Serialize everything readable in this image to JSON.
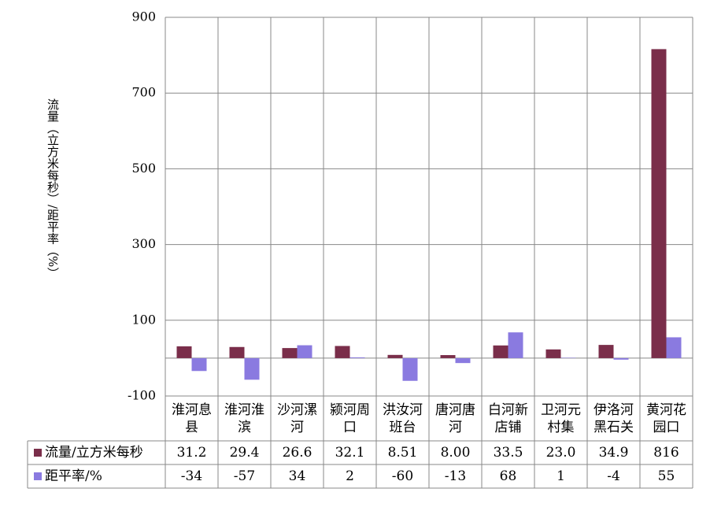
{
  "chart_data": {
    "type": "bar",
    "y_label": "流量（立方米每秒）/距平率（%）",
    "categories": [
      "淮河息县",
      "淮河淮滨",
      "沙河漯河",
      "颍河周口",
      "洪汝河班台",
      "唐河唐河",
      "白河新店铺",
      "卫河元村集",
      "伊洛河黑石关",
      "黄河花园口"
    ],
    "series": [
      {
        "name": "流量/立方米每秒",
        "color": "#7a2e4a",
        "values": [
          31.2,
          29.4,
          26.6,
          32.1,
          8.51,
          8,
          33.5,
          23,
          34.9,
          816
        ],
        "value_labels": [
          "31.2",
          "29.4",
          "26.6",
          "32.1",
          "8.51",
          "8.00",
          "33.5",
          "23.0",
          "34.9",
          "816"
        ]
      },
      {
        "name": "距平率/%",
        "color": "#8a7ae0",
        "values": [
          -34,
          -57,
          34,
          2,
          -60,
          -13,
          68,
          1,
          -4,
          55
        ]
      }
    ],
    "ylim": [
      -100,
      900
    ],
    "yticks": [
      -100,
      100,
      300,
      500,
      700,
      900
    ],
    "grid": true
  }
}
